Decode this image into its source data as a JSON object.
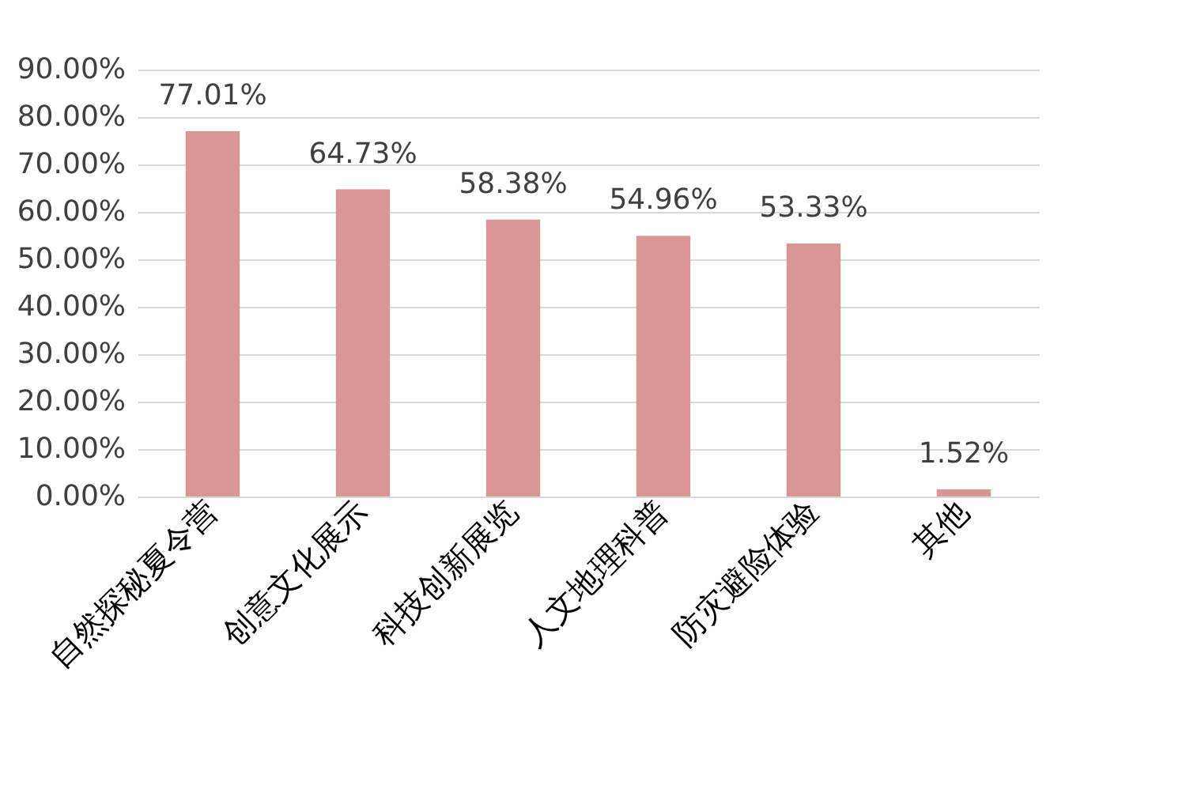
{
  "chart_data": {
    "type": "bar",
    "categories": [
      "自然探秘夏令营",
      "创意文化展示",
      "科技创新展览",
      "人文地理科普",
      "防灾避险体验",
      "其他"
    ],
    "values": [
      77.01,
      64.73,
      58.38,
      54.96,
      53.33,
      1.52
    ],
    "value_labels": [
      "77.01%",
      "64.73%",
      "58.38%",
      "54.96%",
      "53.33%",
      "1.52%"
    ],
    "color": "#d99694",
    "ylim": [
      0,
      90
    ],
    "yticks": [
      {
        "value": 0,
        "label": "0.00%"
      },
      {
        "value": 10,
        "label": "10.00%"
      },
      {
        "value": 20,
        "label": "20.00%"
      },
      {
        "value": 30,
        "label": "30.00%"
      },
      {
        "value": 40,
        "label": "40.00%"
      },
      {
        "value": 50,
        "label": "50.00%"
      },
      {
        "value": 60,
        "label": "60.00%"
      },
      {
        "value": 70,
        "label": "70.00%"
      },
      {
        "value": 80,
        "label": "80.00%"
      },
      {
        "value": 90,
        "label": "90.00%"
      }
    ],
    "grid": "y"
  }
}
